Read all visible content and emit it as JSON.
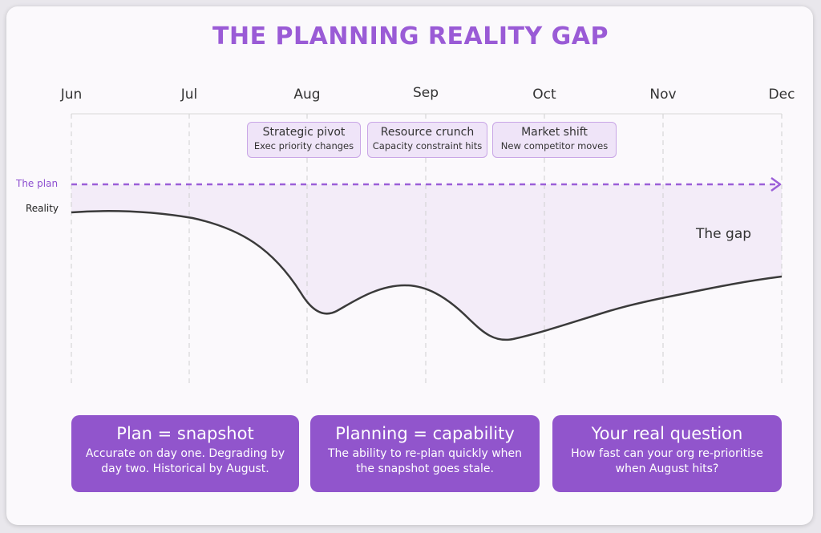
{
  "title": "THE PLANNING REALITY GAP",
  "months": [
    "Jun",
    "Jul",
    "Aug",
    "Sep",
    "Oct",
    "Nov",
    "Dec"
  ],
  "events": [
    {
      "title": "Strategic pivot",
      "subtitle": "Exec priority changes"
    },
    {
      "title": "Resource crunch",
      "subtitle": "Capacity constraint hits"
    },
    {
      "title": "Market shift",
      "subtitle": "New competitor moves"
    }
  ],
  "labels": {
    "plan": "The plan",
    "reality": "Reality",
    "gap": "The gap"
  },
  "panels": [
    {
      "heading": "Plan = snapshot",
      "body": "Accurate on day one. Degrading by day two. Historical by August."
    },
    {
      "heading": "Planning = capability",
      "body": "The ability to re-plan quickly when the snapshot goes stale."
    },
    {
      "heading": "Your real question",
      "body": "How fast can your org re-prioritise when August hits?"
    }
  ],
  "colors": {
    "accent": "#9155cc",
    "title": "#9a5bd6",
    "plan_line": "#9b5fd8",
    "reality_line": "#3a3a3a",
    "gap_fill": "#f3ecf8"
  }
}
